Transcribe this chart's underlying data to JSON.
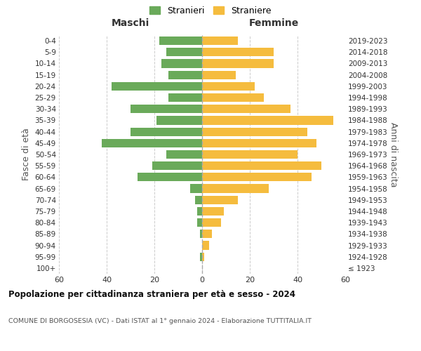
{
  "age_groups": [
    "100+",
    "95-99",
    "90-94",
    "85-89",
    "80-84",
    "75-79",
    "70-74",
    "65-69",
    "60-64",
    "55-59",
    "50-54",
    "45-49",
    "40-44",
    "35-39",
    "30-34",
    "25-29",
    "20-24",
    "15-19",
    "10-14",
    "5-9",
    "0-4"
  ],
  "birth_years": [
    "≤ 1923",
    "1924-1928",
    "1929-1933",
    "1934-1938",
    "1939-1943",
    "1944-1948",
    "1949-1953",
    "1954-1958",
    "1959-1963",
    "1964-1968",
    "1969-1973",
    "1974-1978",
    "1979-1983",
    "1984-1988",
    "1989-1993",
    "1994-1998",
    "1999-2003",
    "2004-2008",
    "2009-2013",
    "2014-2018",
    "2019-2023"
  ],
  "maschi": [
    0,
    1,
    0,
    1,
    2,
    2,
    3,
    5,
    27,
    21,
    15,
    42,
    30,
    19,
    30,
    14,
    38,
    14,
    17,
    15,
    18
  ],
  "femmine": [
    0,
    1,
    3,
    4,
    8,
    9,
    15,
    28,
    46,
    50,
    40,
    48,
    44,
    55,
    37,
    26,
    22,
    14,
    30,
    30,
    15
  ],
  "color_maschi": "#6aaa5a",
  "color_femmine": "#f5bc3e",
  "title": "Popolazione per cittadinanza straniera per età e sesso - 2024",
  "subtitle": "COMUNE DI BORGOSESIA (VC) - Dati ISTAT al 1° gennaio 2024 - Elaborazione TUTTITALIA.IT",
  "xlabel_left": "Maschi",
  "xlabel_right": "Femmine",
  "ylabel_left": "Fasce di età",
  "ylabel_right": "Anni di nascita",
  "legend_maschi": "Stranieri",
  "legend_femmine": "Straniere",
  "xlim": 60,
  "background_color": "#ffffff"
}
